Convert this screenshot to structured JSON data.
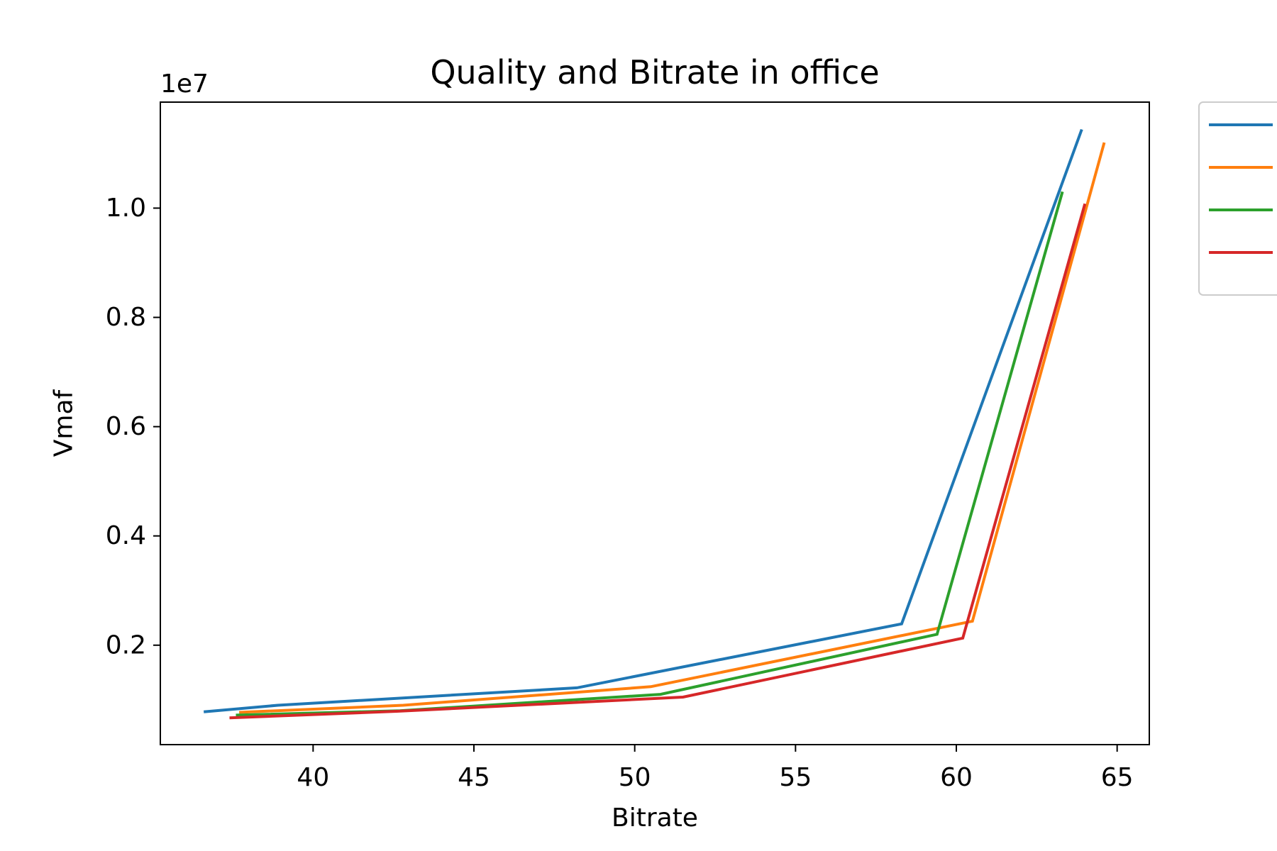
{
  "chart_data": {
    "type": "line",
    "title": "Quality and Bitrate in office",
    "xlabel": "Bitrate",
    "ylabel": "Vmaf",
    "y_offset_label": "1e7",
    "xlim": [
      35.25,
      66.0
    ],
    "ylim": [
      0.018,
      1.194
    ],
    "xticks": [
      40,
      45,
      50,
      55,
      60,
      65
    ],
    "xtick_labels": [
      "40",
      "45",
      "50",
      "55",
      "60",
      "65"
    ],
    "yticks": [
      0.2,
      0.4,
      0.6,
      0.8,
      1.0
    ],
    "ytick_labels": [
      "0.2",
      "0.4",
      "0.6",
      "0.8",
      "1.0"
    ],
    "grid": false,
    "legend_position": "outside-top-right",
    "series": [
      {
        "color": "#1f77b4",
        "x": [
          36.6,
          38.9,
          48.2,
          58.3,
          63.9
        ],
        "y": [
          0.078,
          0.09,
          0.122,
          0.239,
          1.144
        ]
      },
      {
        "color": "#ff7f0e",
        "x": [
          37.7,
          42.8,
          50.5,
          60.5,
          64.6
        ],
        "y": [
          0.077,
          0.09,
          0.124,
          0.244,
          1.12
        ]
      },
      {
        "color": "#2ca02c",
        "x": [
          37.6,
          42.7,
          50.8,
          59.4,
          63.3
        ],
        "y": [
          0.072,
          0.08,
          0.11,
          0.22,
          1.03
        ]
      },
      {
        "color": "#d62728",
        "x": [
          37.4,
          42.6,
          51.5,
          60.2,
          64.0
        ],
        "y": [
          0.067,
          0.079,
          0.105,
          0.213,
          1.008
        ]
      }
    ]
  }
}
